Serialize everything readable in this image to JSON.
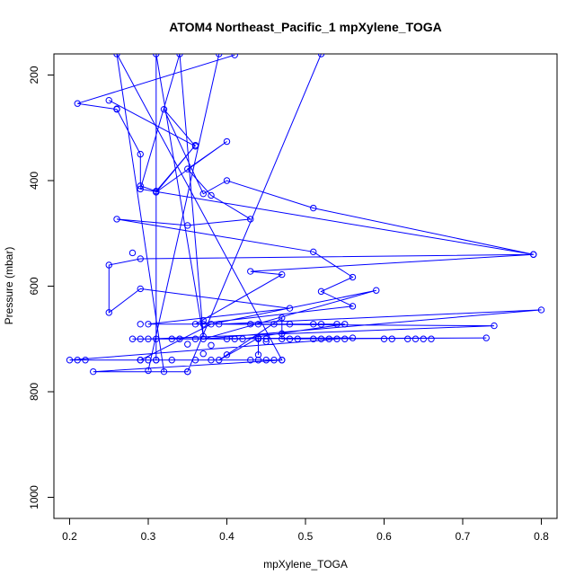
{
  "chart_data": {
    "type": "line",
    "title": "ATOM4 Northeast_Pacific_1 mpXylene_TOGA",
    "xlabel": "mpXylene_TOGA",
    "ylabel": "Pressure (mbar)",
    "xlim": [
      0.18,
      0.82
    ],
    "ylim": [
      1040,
      160
    ],
    "y_inverted": true,
    "x_ticks": [
      0.2,
      0.3,
      0.4,
      0.5,
      0.6,
      0.7,
      0.8
    ],
    "x_tick_labels": [
      "0.2",
      "0.3",
      "0.4",
      "0.5",
      "0.6",
      "0.7",
      "0.8"
    ],
    "y_ticks": [
      200,
      400,
      600,
      800,
      1000
    ],
    "y_tick_labels": [
      "200",
      "400",
      "600",
      "800",
      "1000"
    ],
    "color": "#0000ff",
    "marker": "open-circle",
    "grid": false,
    "series": [
      {
        "points": [
          [
            0.41,
            162
          ],
          [
            0.21,
            254
          ],
          [
            0.26,
            265
          ],
          [
            0.29,
            350
          ],
          [
            0.29,
            410
          ],
          [
            0.31,
            420
          ],
          [
            0.36,
            333
          ],
          [
            0.31,
            422
          ],
          [
            0.4,
            326
          ],
          [
            0.35,
            378
          ],
          [
            0.38,
            428
          ],
          [
            0.43,
            473
          ],
          [
            0.35,
            485
          ],
          [
            0.26,
            473
          ],
          [
            0.51,
            535
          ],
          [
            0.56,
            583
          ],
          [
            0.52,
            610
          ],
          [
            0.56,
            638
          ],
          [
            0.36,
            672
          ],
          [
            0.47,
            578
          ],
          [
            0.43,
            572
          ],
          [
            0.79,
            540
          ],
          [
            0.29,
            548
          ],
          [
            0.25,
            560
          ],
          [
            0.25,
            650
          ],
          [
            0.29,
            605
          ],
          [
            0.48,
            642
          ],
          [
            0.3,
            672
          ],
          [
            0.55,
            672
          ],
          [
            0.42,
            700
          ],
          [
            0.28,
            700
          ],
          [
            0.56,
            698
          ],
          [
            0.2,
            740
          ],
          [
            0.47,
            740
          ],
          [
            0.23,
            762
          ],
          [
            0.35,
            762
          ],
          [
            0.52,
            160
          ],
          [
            0.35,
            762
          ],
          [
            0.32,
            762
          ],
          [
            0.26,
            160
          ],
          [
            0.47,
            740
          ],
          [
            0.29,
            740
          ],
          [
            0.38,
            672
          ],
          [
            0.59,
            608
          ],
          [
            0.37,
            700
          ],
          [
            0.8,
            645
          ],
          [
            0.39,
            672
          ],
          [
            0.74,
            675
          ],
          [
            0.3,
            700
          ],
          [
            0.73,
            698
          ],
          [
            0.47,
            700
          ],
          [
            0.47,
            660
          ],
          [
            0.4,
            730
          ],
          [
            0.39,
            740
          ],
          [
            0.44,
            698
          ],
          [
            0.44,
            730
          ]
        ]
      },
      {
        "points": [
          [
            0.25,
            248
          ],
          [
            0.36,
            335
          ],
          [
            0.32,
            265
          ],
          [
            0.37,
            425
          ],
          [
            0.4,
            400
          ],
          [
            0.51,
            452
          ],
          [
            0.79,
            540
          ],
          [
            0.29,
            416
          ],
          [
            0.34,
            160
          ],
          [
            0.37,
            695
          ],
          [
            0.31,
            160
          ],
          [
            0.31,
            740
          ]
        ]
      },
      {
        "points": [
          [
            0.3,
            760
          ],
          [
            0.39,
            160
          ]
        ]
      }
    ],
    "extra_markers": [
      [
        0.26,
        264
      ],
      [
        0.28,
        537
      ],
      [
        0.38,
        712
      ],
      [
        0.35,
        710
      ],
      [
        0.37,
        728
      ],
      [
        0.38,
        740
      ],
      [
        0.22,
        740
      ],
      [
        0.21,
        740
      ],
      [
        0.3,
        740
      ],
      [
        0.31,
        740
      ],
      [
        0.29,
        740
      ],
      [
        0.33,
        740
      ],
      [
        0.36,
        740
      ],
      [
        0.43,
        740
      ],
      [
        0.44,
        740
      ],
      [
        0.45,
        740
      ],
      [
        0.46,
        740
      ],
      [
        0.29,
        700
      ],
      [
        0.31,
        700
      ],
      [
        0.33,
        700
      ],
      [
        0.34,
        700
      ],
      [
        0.36,
        700
      ],
      [
        0.4,
        700
      ],
      [
        0.41,
        700
      ],
      [
        0.45,
        700
      ],
      [
        0.48,
        700
      ],
      [
        0.49,
        700
      ],
      [
        0.51,
        700
      ],
      [
        0.52,
        700
      ],
      [
        0.53,
        700
      ],
      [
        0.54,
        700
      ],
      [
        0.55,
        700
      ],
      [
        0.6,
        700
      ],
      [
        0.61,
        700
      ],
      [
        0.63,
        700
      ],
      [
        0.64,
        700
      ],
      [
        0.65,
        700
      ],
      [
        0.66,
        700
      ],
      [
        0.29,
        672
      ],
      [
        0.37,
        672
      ],
      [
        0.43,
        672
      ],
      [
        0.44,
        672
      ],
      [
        0.46,
        672
      ],
      [
        0.48,
        672
      ],
      [
        0.51,
        672
      ],
      [
        0.52,
        672
      ],
      [
        0.54,
        672
      ],
      [
        0.47,
        690
      ],
      [
        0.44,
        700
      ],
      [
        0.45,
        705
      ],
      [
        0.37,
        665
      ]
    ]
  }
}
